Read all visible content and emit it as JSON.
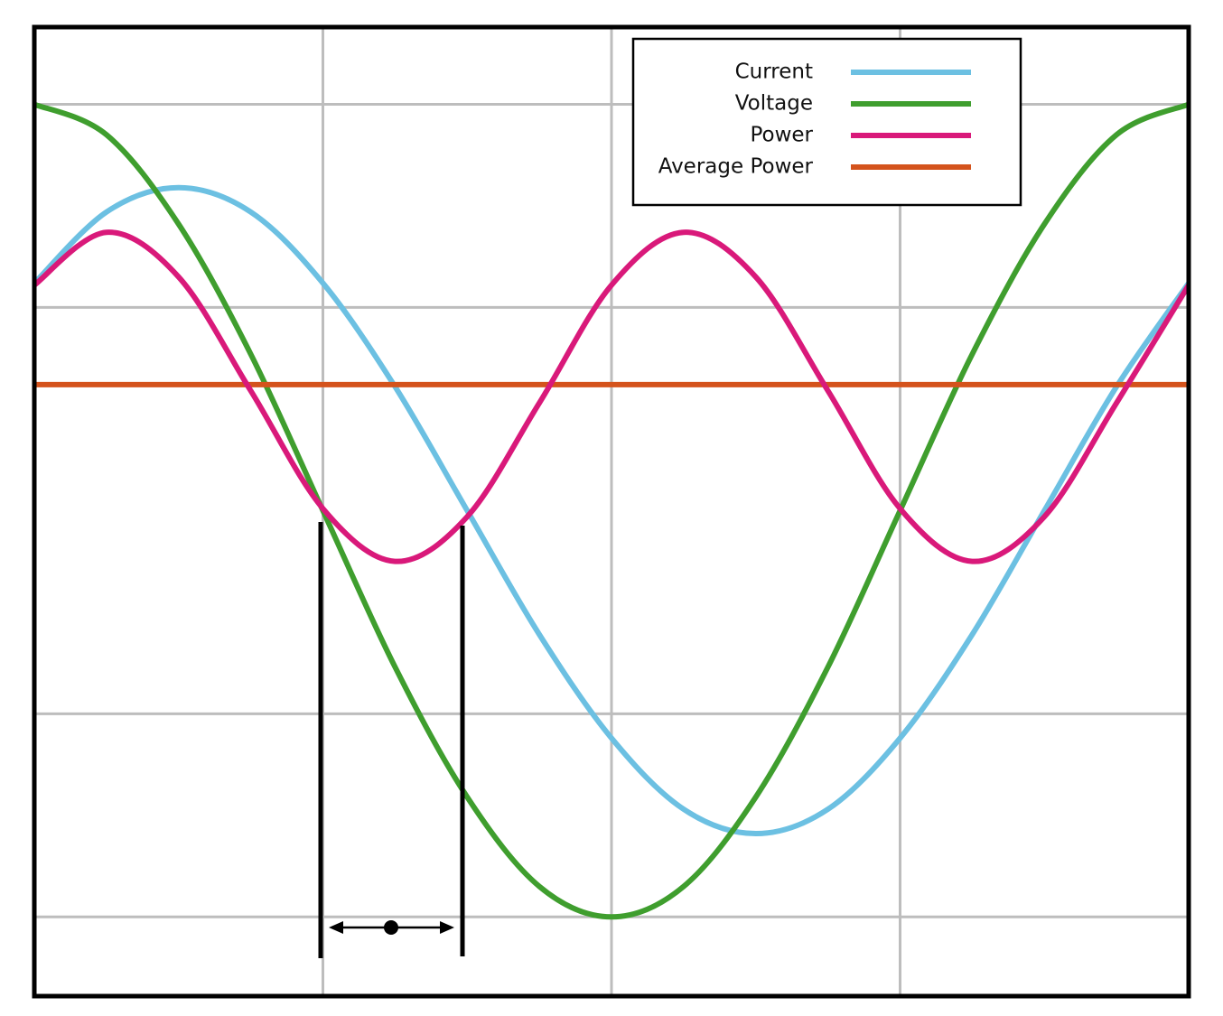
{
  "chart_data": {
    "type": "line",
    "x": [
      0,
      0.25,
      0.5,
      0.75,
      1,
      1.25,
      1.5,
      1.75,
      2,
      2.25,
      2.5,
      2.75,
      3,
      3.25,
      3.5,
      3.75,
      4
    ],
    "series": [
      {
        "name": "Current",
        "color": "#6cc0e2",
        "values": [
          1.12,
          1.47,
          1.59,
          1.47,
          1.12,
          0.61,
          0,
          -0.61,
          -1.12,
          -1.47,
          -1.59,
          -1.47,
          -1.12,
          -0.61,
          0,
          0.61,
          1.12
        ]
      },
      {
        "name": "Voltage",
        "color": "#3f9e2e",
        "values": [
          2,
          1.85,
          1.41,
          0.77,
          0,
          -0.77,
          -1.41,
          -1.85,
          -2,
          -1.85,
          -1.41,
          -0.77,
          0,
          0.77,
          1.41,
          1.85,
          2
        ]
      },
      {
        "name": "Power",
        "color": "#d9197a",
        "values": [
          1.11,
          1.37,
          1.15,
          0.59,
          0.01,
          -0.25,
          -0.03,
          0.53,
          1.11,
          1.37,
          1.15,
          0.59,
          0.01,
          -0.25,
          -0.03,
          0.53,
          1.11
        ]
      },
      {
        "name": "Average Power",
        "color": "#d4531c",
        "values": [
          0.62,
          0.62,
          0.62,
          0.62,
          0.62,
          0.62,
          0.62,
          0.62,
          0.62,
          0.62,
          0.62,
          0.62,
          0.62,
          0.62,
          0.62,
          0.62,
          0.62
        ]
      }
    ],
    "xlim": [
      0,
      4
    ],
    "xticks": [
      1,
      2,
      3
    ],
    "ylim": [
      -2.39,
      2.38
    ],
    "yticks": [
      -2,
      -1,
      1,
      2
    ],
    "grid": true,
    "legend": "top-right"
  }
}
